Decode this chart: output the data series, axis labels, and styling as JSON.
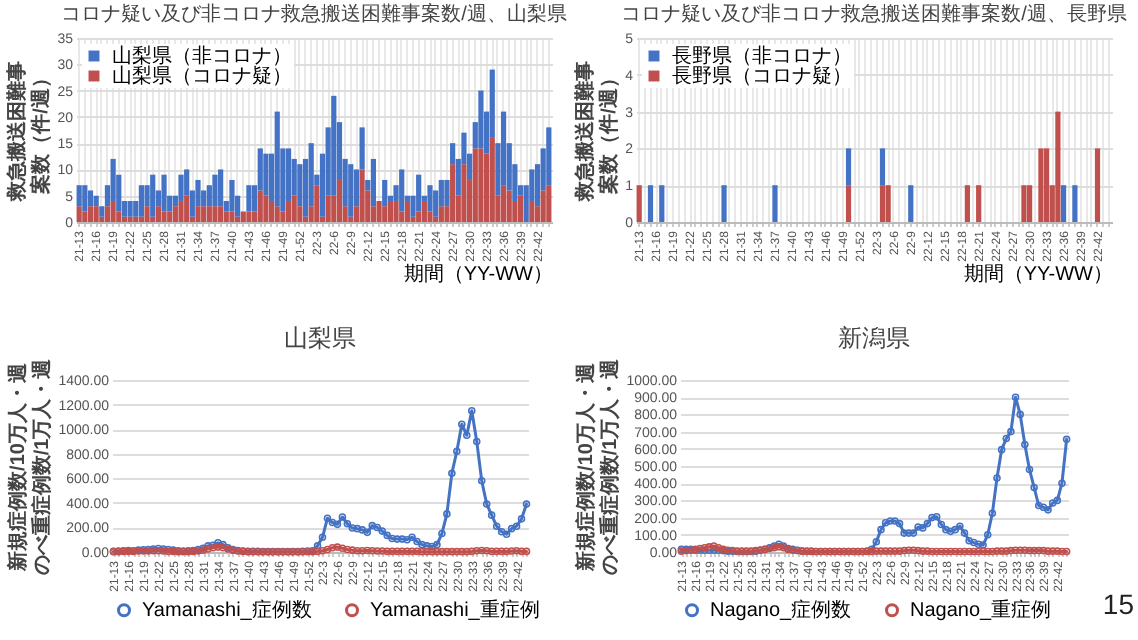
{
  "chart_data": [
    {
      "type": "bar",
      "title": "コロナ疑い及び非コロナ救急搬送困難事案数/週、山梨県",
      "ylabel": "救急搬送困難事案数（件/週）",
      "xlabel": "期間（YY-WW）",
      "stacked": true,
      "grid": true,
      "legend": "top left",
      "categories": [
        "21-13",
        null,
        null,
        "21-16",
        null,
        null,
        "21-19",
        null,
        null,
        "21-22",
        null,
        null,
        "21-25",
        null,
        null,
        "21-28",
        null,
        null,
        "21-31",
        null,
        null,
        "21-34",
        null,
        null,
        "21-37",
        null,
        null,
        "21-40",
        null,
        null,
        "21-43",
        null,
        null,
        "21-46",
        null,
        null,
        "21-49",
        null,
        null,
        "21-52",
        null,
        null,
        "22-3",
        null,
        null,
        "22-6",
        null,
        null,
        "22-9",
        null,
        null,
        "22-12",
        null,
        null,
        "22-15",
        null,
        null,
        "22-18",
        null,
        null,
        "22-21",
        null,
        null,
        "22-24",
        null,
        null,
        "22-27",
        null,
        null,
        "22-30",
        null,
        null,
        "22-33",
        null,
        null,
        "22-36",
        null,
        null,
        "22-39",
        null,
        null,
        "22-42",
        null,
        null
      ],
      "ylim": [
        0,
        35
      ],
      "yticks": [
        0,
        5,
        10,
        15,
        20,
        25,
        30,
        35
      ],
      "series": [
        {
          "name": "山梨県（コロナ疑）",
          "color": "#c0504d",
          "values": [
            3,
            2,
            3,
            3,
            1,
            3,
            4,
            2,
            1,
            1,
            1,
            1,
            3,
            1,
            3,
            2,
            2,
            3,
            4,
            5,
            1,
            3,
            3,
            3,
            3,
            3,
            2,
            2,
            1,
            2,
            2,
            2,
            6,
            5,
            4,
            3,
            2,
            4,
            5,
            3,
            1,
            3,
            7,
            1,
            5,
            5,
            8,
            3,
            1,
            3,
            10,
            6,
            3,
            4,
            3,
            4,
            4,
            2,
            4,
            1,
            2,
            4,
            2,
            1,
            3,
            3,
            11,
            5,
            11,
            8,
            14,
            14,
            13,
            16,
            5,
            7,
            6,
            4,
            5,
            0,
            4,
            3,
            6,
            7
          ]
        },
        {
          "name": "山梨県（非コロナ）",
          "color": "#4472c4",
          "values": [
            4,
            5,
            3,
            2,
            2,
            4,
            8,
            7,
            3,
            3,
            3,
            6,
            4,
            8,
            3,
            7,
            3,
            2,
            5,
            5,
            5,
            5,
            3,
            4,
            6,
            7,
            2,
            6,
            4,
            0,
            5,
            5,
            8,
            8,
            9,
            18,
            12,
            10,
            7,
            8,
            11,
            12,
            2,
            12,
            13,
            19,
            11,
            9,
            10,
            7,
            8,
            2,
            9,
            0,
            5,
            1,
            3,
            8,
            1,
            4,
            7,
            1,
            5,
            5,
            5,
            5,
            4,
            7,
            6,
            5,
            5,
            11,
            8,
            13,
            10,
            14,
            9,
            7,
            2,
            7,
            6,
            8,
            8,
            11
          ]
        }
      ]
    },
    {
      "type": "bar",
      "title": "コロナ疑い及び非コロナ救急搬送困難事案数/週、長野県",
      "ylabel": "救急搬送困難事案数（件/週）",
      "xlabel": "期間（YY-WW）",
      "stacked": true,
      "grid": true,
      "legend": "top left",
      "categories": [
        "21-13",
        null,
        null,
        "21-16",
        null,
        null,
        "21-19",
        null,
        null,
        "21-22",
        null,
        null,
        "21-25",
        null,
        null,
        "21-28",
        null,
        null,
        "21-31",
        null,
        null,
        "21-34",
        null,
        null,
        "21-37",
        null,
        null,
        "21-40",
        null,
        null,
        "21-43",
        null,
        null,
        "21-46",
        null,
        null,
        "21-49",
        null,
        null,
        "21-52",
        null,
        null,
        "22-3",
        null,
        null,
        "22-6",
        null,
        null,
        "22-9",
        null,
        null,
        "22-12",
        null,
        null,
        "22-15",
        null,
        null,
        "22-18",
        null,
        null,
        "22-21",
        null,
        null,
        "22-24",
        null,
        null,
        "22-27",
        null,
        null,
        "22-30",
        null,
        null,
        "22-33",
        null,
        null,
        "22-36",
        null,
        null,
        "22-39",
        null,
        null,
        "22-42",
        null,
        null
      ],
      "ylim": [
        0,
        5
      ],
      "yticks": [
        0,
        1,
        2,
        3,
        4,
        5
      ],
      "series": [
        {
          "name": "長野県（コロナ疑）",
          "color": "#c0504d",
          "values": [
            1,
            0,
            0,
            0,
            0,
            0,
            0,
            0,
            0,
            0,
            0,
            0,
            0,
            0,
            0,
            0,
            0,
            0,
            0,
            0,
            0,
            0,
            0,
            0,
            0,
            0,
            0,
            0,
            0,
            0,
            0,
            0,
            0,
            0,
            0,
            0,
            0,
            1,
            0,
            0,
            0,
            0,
            0,
            1,
            1,
            0,
            0,
            0,
            0,
            0,
            0,
            0,
            0,
            0,
            0,
            0,
            0,
            0,
            1,
            0,
            1,
            0,
            0,
            0,
            0,
            0,
            0,
            0,
            1,
            1,
            0,
            2,
            2,
            1,
            3,
            0,
            0,
            0,
            0,
            0,
            0,
            2,
            0,
            0
          ]
        },
        {
          "name": "長野県（非コロナ）",
          "color": "#4472c4",
          "values": [
            0,
            0,
            1,
            0,
            1,
            0,
            0,
            0,
            0,
            0,
            0,
            0,
            0,
            0,
            0,
            1,
            0,
            0,
            0,
            0,
            0,
            0,
            0,
            0,
            1,
            0,
            0,
            0,
            0,
            0,
            0,
            0,
            0,
            0,
            0,
            0,
            0,
            1,
            0,
            0,
            0,
            0,
            0,
            1,
            0,
            0,
            0,
            0,
            1,
            0,
            0,
            0,
            0,
            0,
            0,
            0,
            0,
            0,
            0,
            0,
            0,
            0,
            0,
            0,
            0,
            0,
            0,
            0,
            0,
            0,
            0,
            0,
            0,
            0,
            0,
            1,
            0,
            1,
            0,
            0,
            0,
            0,
            0,
            0
          ]
        }
      ]
    },
    {
      "type": "line",
      "title": "山梨県",
      "ylabel": "新規症例数/10万人・週のべ重症例数/1万人・週",
      "grid": "y",
      "legend": "bottom",
      "marker": "circle",
      "categories": [
        "21-13",
        null,
        null,
        "21-16",
        null,
        null,
        "21-19",
        null,
        null,
        "21-22",
        null,
        null,
        "21-25",
        null,
        null,
        "21-28",
        null,
        null,
        "21-31",
        null,
        null,
        "21-34",
        null,
        null,
        "21-37",
        null,
        null,
        "21-40",
        null,
        null,
        "21-43",
        null,
        null,
        "21-46",
        null,
        null,
        "21-49",
        null,
        null,
        "21-52",
        null,
        null,
        "22-3",
        null,
        null,
        "22-6",
        null,
        null,
        "22-9",
        null,
        null,
        "22-12",
        null,
        null,
        "22-15",
        null,
        null,
        "22-18",
        null,
        null,
        "22-21",
        null,
        null,
        "22-24",
        null,
        null,
        "22-27",
        null,
        null,
        "22-30",
        null,
        null,
        "22-33",
        null,
        null,
        "22-36",
        null,
        null,
        "22-39",
        null,
        null,
        "22-42",
        null,
        null
      ],
      "ylim": [
        0,
        1400
      ],
      "yticks": [
        {
          "value": 0,
          "label": "0.00"
        },
        {
          "value": 200,
          "label": "200.00"
        },
        {
          "value": 400,
          "label": "400.00"
        },
        {
          "value": 600,
          "label": "600.00"
        },
        {
          "value": 800,
          "label": "800.00"
        },
        {
          "value": 1000,
          "label": "1000.00"
        },
        {
          "value": 1200,
          "label": "1200.00"
        },
        {
          "value": 1400,
          "label": "1400.00"
        }
      ],
      "series": [
        {
          "name": "Yamanashi_症例数",
          "color": "#4472c4",
          "values": [
            5,
            8,
            10,
            12,
            10,
            15,
            18,
            20,
            25,
            28,
            25,
            20,
            15,
            10,
            8,
            10,
            12,
            20,
            30,
            50,
            55,
            75,
            60,
            35,
            20,
            12,
            8,
            5,
            5,
            5,
            3,
            3,
            3,
            3,
            3,
            3,
            3,
            3,
            5,
            8,
            10,
            50,
            120,
            275,
            240,
            225,
            285,
            230,
            195,
            190,
            180,
            160,
            215,
            200,
            170,
            135,
            110,
            105,
            105,
            100,
            120,
            85,
            60,
            50,
            45,
            60,
            150,
            310,
            640,
            820,
            1040,
            950,
            1150,
            900,
            580,
            390,
            300,
            210,
            165,
            145,
            190,
            210,
            270,
            390
          ]
        },
        {
          "name": "Yamanashi_重症例",
          "color": "#c0504d",
          "values": [
            3,
            3,
            5,
            5,
            5,
            8,
            8,
            8,
            10,
            10,
            8,
            5,
            5,
            3,
            3,
            3,
            5,
            8,
            15,
            25,
            35,
            40,
            35,
            25,
            15,
            8,
            5,
            3,
            2,
            2,
            2,
            2,
            2,
            2,
            2,
            2,
            2,
            2,
            2,
            2,
            2,
            5,
            10,
            20,
            35,
            40,
            30,
            20,
            15,
            10,
            10,
            12,
            10,
            8,
            8,
            5,
            5,
            5,
            5,
            5,
            5,
            5,
            3,
            3,
            3,
            3,
            3,
            3,
            3,
            3,
            3,
            3,
            5,
            10,
            12,
            10,
            5,
            5,
            5,
            5,
            8,
            10,
            5,
            5
          ]
        }
      ]
    },
    {
      "type": "line",
      "title": "新潟県",
      "ylabel": "新規症例数/10万人・週のべ重症例数/1万人・週",
      "grid": "y",
      "legend": "bottom",
      "marker": "circle",
      "annotations": [
        "15"
      ],
      "categories": [
        "21-13",
        null,
        null,
        "21-16",
        null,
        null,
        "21-19",
        null,
        null,
        "21-22",
        null,
        null,
        "21-25",
        null,
        null,
        "21-28",
        null,
        null,
        "21-31",
        null,
        null,
        "21-34",
        null,
        null,
        "21-37",
        null,
        null,
        "21-40",
        null,
        null,
        "21-43",
        null,
        null,
        "21-46",
        null,
        null,
        "21-49",
        null,
        null,
        "21-52",
        null,
        null,
        "22-3",
        null,
        null,
        "22-6",
        null,
        null,
        "22-9",
        null,
        null,
        "22-12",
        null,
        null,
        "22-15",
        null,
        null,
        "22-18",
        null,
        null,
        "22-21",
        null,
        null,
        "22-24",
        null,
        null,
        "22-27",
        null,
        null,
        "22-30",
        null,
        null,
        "22-33",
        null,
        null,
        "22-36",
        null,
        null,
        "22-39",
        null,
        null,
        "22-42",
        null,
        null
      ],
      "ylim": [
        0,
        1000
      ],
      "yticks": [
        {
          "value": 0,
          "label": "0.00"
        },
        {
          "value": 100,
          "label": "100.00"
        },
        {
          "value": 200,
          "label": "200.00"
        },
        {
          "value": 300,
          "label": "300.00"
        },
        {
          "value": 400,
          "label": "400.00"
        },
        {
          "value": 500,
          "label": "500.00"
        },
        {
          "value": 600,
          "label": "600.00"
        },
        {
          "value": 700,
          "label": "700.00"
        },
        {
          "value": 800,
          "label": "800.00"
        },
        {
          "value": 900,
          "label": "900.00"
        },
        {
          "value": 1000,
          "label": "1000.00"
        }
      ],
      "series": [
        {
          "name": "Nagano_症例数",
          "color": "#4472c4",
          "values": [
            15,
            15,
            15,
            10,
            10,
            10,
            10,
            10,
            10,
            8,
            5,
            5,
            3,
            3,
            3,
            3,
            5,
            10,
            15,
            25,
            35,
            45,
            35,
            20,
            15,
            10,
            5,
            5,
            5,
            3,
            3,
            3,
            3,
            3,
            3,
            3,
            3,
            3,
            3,
            3,
            5,
            15,
            60,
            130,
            170,
            180,
            180,
            165,
            110,
            110,
            110,
            145,
            140,
            165,
            200,
            205,
            160,
            130,
            120,
            130,
            150,
            110,
            65,
            55,
            45,
            40,
            100,
            225,
            430,
            595,
            660,
            700,
            900,
            800,
            625,
            480,
            375,
            270,
            260,
            245,
            285,
            300,
            400,
            655
          ]
        },
        {
          "name": "Nagano_重症例",
          "color": "#c0504d",
          "values": [
            5,
            8,
            10,
            15,
            20,
            25,
            30,
            35,
            25,
            15,
            10,
            8,
            5,
            5,
            5,
            5,
            8,
            12,
            15,
            20,
            25,
            30,
            25,
            15,
            10,
            8,
            5,
            3,
            3,
            3,
            3,
            3,
            3,
            3,
            3,
            3,
            3,
            3,
            3,
            3,
            3,
            3,
            5,
            5,
            5,
            5,
            5,
            5,
            8,
            10,
            10,
            8,
            5,
            5,
            3,
            3,
            3,
            3,
            3,
            3,
            3,
            3,
            3,
            3,
            3,
            3,
            3,
            3,
            5,
            5,
            5,
            8,
            10,
            10,
            10,
            8,
            8,
            8,
            8,
            5,
            5,
            5,
            3,
            3
          ]
        }
      ]
    }
  ]
}
